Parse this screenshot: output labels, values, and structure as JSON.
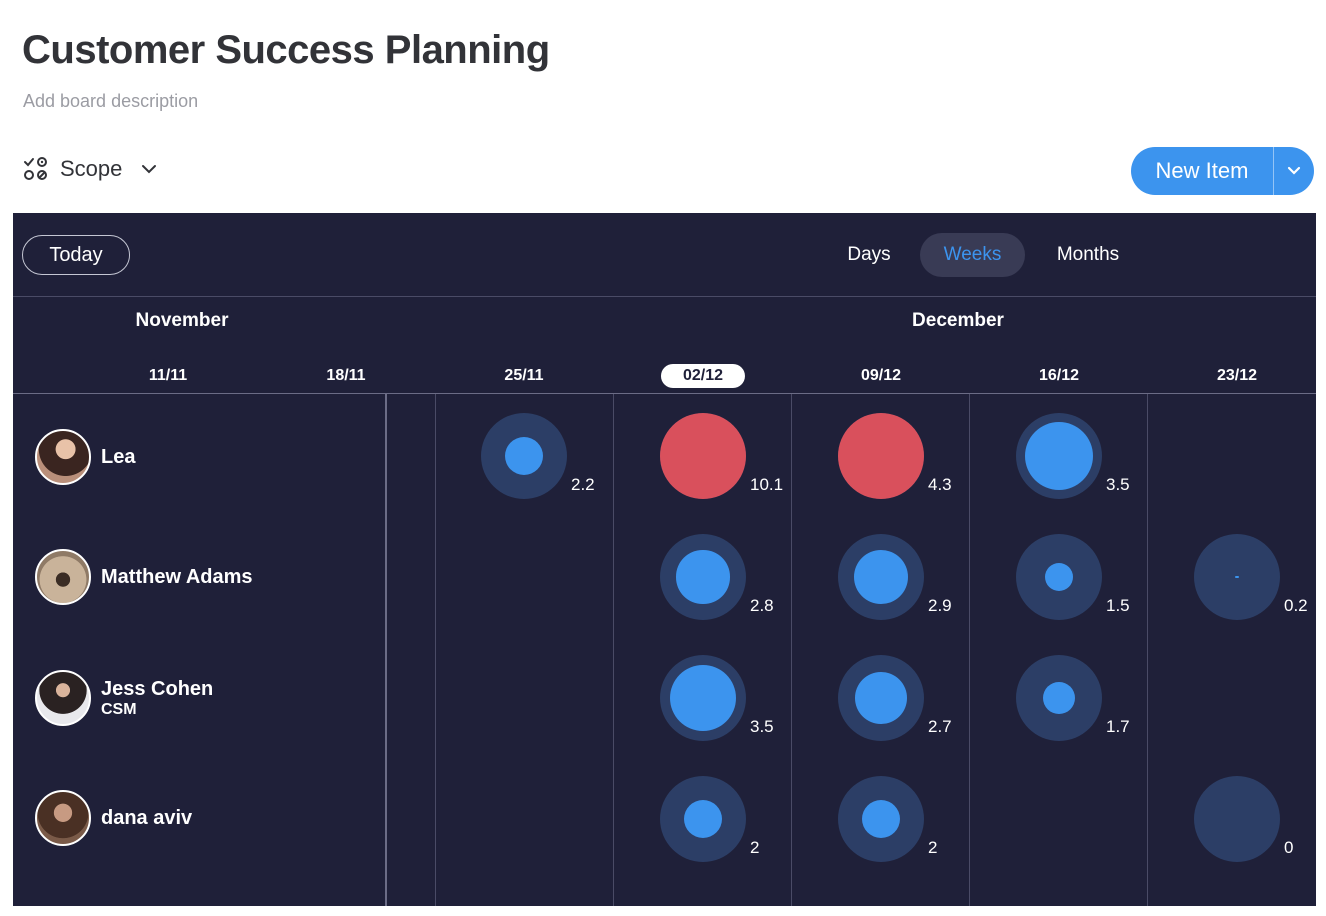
{
  "page": {
    "title": "Customer Success Planning",
    "description": "Add board description"
  },
  "toolbar": {
    "scope_label": "Scope",
    "new_item_label": "New Item"
  },
  "timeline": {
    "today_label": "Today",
    "views": [
      {
        "label": "Days",
        "active": false
      },
      {
        "label": "Weeks",
        "active": true
      },
      {
        "label": "Months",
        "active": false
      }
    ],
    "months": [
      "November",
      "December"
    ],
    "weeks": [
      {
        "label": "11/11",
        "current": false
      },
      {
        "label": "18/11",
        "current": false
      },
      {
        "label": "25/11",
        "current": false
      },
      {
        "label": "02/12",
        "current": true
      },
      {
        "label": "09/12",
        "current": false
      },
      {
        "label": "16/12",
        "current": false
      },
      {
        "label": "23/12",
        "current": false
      }
    ]
  },
  "colors": {
    "board_bg": "#1f2039",
    "accent": "#3c94ee",
    "overload": "#d9505c",
    "ring": "#2c3e66"
  },
  "people": [
    {
      "name": "Lea",
      "role": ""
    },
    {
      "name": "Matthew Adams",
      "role": ""
    },
    {
      "name": "Jess Cohen",
      "role": "CSM"
    },
    {
      "name": "dana aviv",
      "role": ""
    }
  ],
  "workload": [
    [
      null,
      null,
      {
        "value": "2.2",
        "level": 0.5,
        "over": false
      },
      {
        "value": "10.1",
        "level": 1,
        "over": true
      },
      {
        "value": "4.3",
        "level": 1,
        "over": true
      },
      {
        "value": "3.5",
        "level": 0.9,
        "over": false
      },
      null
    ],
    [
      null,
      null,
      null,
      {
        "value": "2.8",
        "level": 0.7,
        "over": false
      },
      {
        "value": "2.9",
        "level": 0.72,
        "over": false
      },
      {
        "value": "1.5",
        "level": 0.38,
        "over": false
      },
      {
        "value": "0.2",
        "level": 0.02,
        "over": false
      }
    ],
    [
      null,
      null,
      null,
      {
        "value": "3.5",
        "level": 0.88,
        "over": false
      },
      {
        "value": "2.7",
        "level": 0.68,
        "over": false
      },
      {
        "value": "1.7",
        "level": 0.42,
        "over": false
      },
      null
    ],
    [
      null,
      null,
      null,
      {
        "value": "2",
        "level": 0.5,
        "over": false
      },
      {
        "value": "2",
        "level": 0.5,
        "over": false
      },
      null,
      {
        "value": "0",
        "level": 0,
        "over": false
      }
    ]
  ]
}
